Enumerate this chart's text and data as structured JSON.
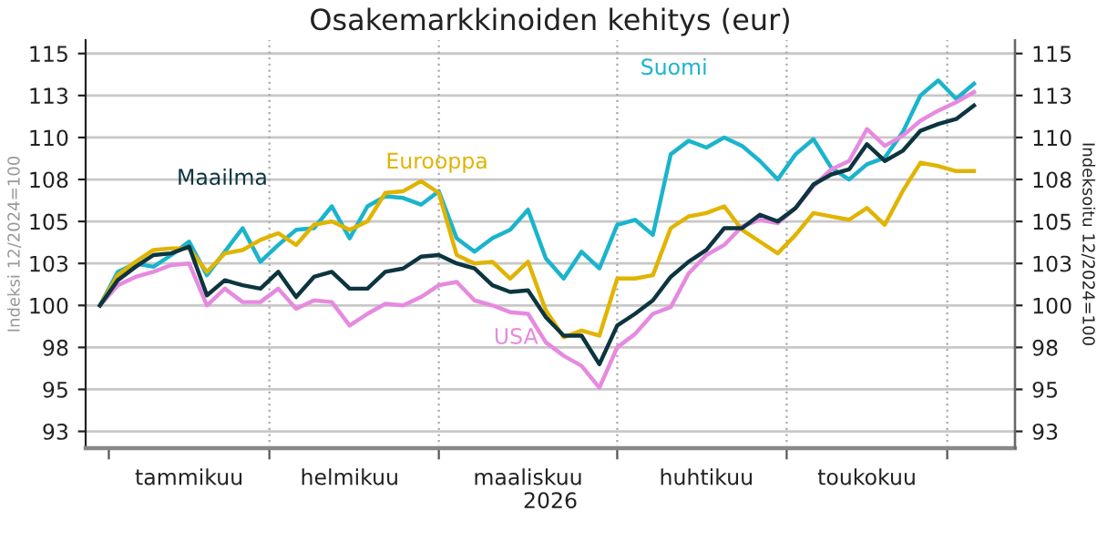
{
  "chart_data": {
    "type": "line",
    "title": "Osakemarkkinoiden kehitys (eur)",
    "xlabel": "2026",
    "ylabel": "Indeksi 12/2024=100",
    "y2label": "Indeksoitu 12/2024=100",
    "categories": [
      null,
      null,
      null,
      null,
      null,
      "tammikuu",
      null,
      null,
      null,
      null,
      null,
      null,
      null,
      null,
      "helmikuu",
      null,
      null,
      null,
      null,
      null,
      null,
      null,
      null,
      null,
      "maaliskuu",
      null,
      null,
      null,
      null,
      null,
      null,
      null,
      null,
      null,
      "huhtikuu",
      null,
      null,
      null,
      null,
      null,
      null,
      null,
      null,
      "toukokuu",
      null,
      null,
      null,
      null,
      null,
      null
    ],
    "series": [
      {
        "name": "Suomi",
        "color": "#1ab4cc",
        "values": [
          100,
          102.0,
          102.5,
          102.3,
          103.0,
          103.8,
          101.8,
          103.2,
          104.6,
          102.6,
          103.6,
          104.5,
          104.6,
          105.9,
          104.0,
          105.9,
          106.5,
          106.4,
          106.0,
          106.8,
          104.0,
          103.2,
          104.0,
          104.5,
          105.7,
          102.8,
          101.6,
          103.2,
          102.2,
          104.8,
          105.1,
          104.2,
          109.0,
          109.8,
          109.4,
          110.0,
          109.5,
          108.6,
          107.5,
          109.0,
          109.9,
          108.2,
          107.5,
          108.4,
          108.8,
          110.3,
          112.5,
          113.4,
          112.3,
          113.2
        ]
      },
      {
        "name": "Eurooppa",
        "color": "#e0b400",
        "values": [
          100,
          101.8,
          102.6,
          103.3,
          103.4,
          103.4,
          102.0,
          103.1,
          103.3,
          103.9,
          104.3,
          103.6,
          104.8,
          105.0,
          104.5,
          105.0,
          106.7,
          106.8,
          107.4,
          106.7,
          103.0,
          102.5,
          102.6,
          101.6,
          102.6,
          99.7,
          98.1,
          98.5,
          98.2,
          101.6,
          101.6,
          101.8,
          104.6,
          105.3,
          105.5,
          105.9,
          104.5,
          103.8,
          103.1,
          104.2,
          105.5,
          105.3,
          105.1,
          105.8,
          104.8,
          106.8,
          108.5,
          108.3,
          108.0,
          108.0
        ]
      },
      {
        "name": "USA",
        "color": "#e68ae0",
        "values": [
          100,
          101.2,
          101.7,
          102.0,
          102.4,
          102.5,
          100.0,
          101.0,
          100.2,
          100.2,
          101.0,
          99.8,
          100.3,
          100.2,
          98.8,
          99.5,
          100.1,
          100.0,
          100.5,
          101.2,
          101.4,
          100.3,
          100.0,
          99.6,
          99.5,
          97.8,
          97.0,
          96.4,
          95.1,
          97.5,
          98.3,
          99.5,
          99.9,
          101.9,
          103.0,
          103.6,
          104.7,
          105.1,
          104.9,
          105.8,
          107.1,
          108.1,
          108.6,
          110.5,
          109.5,
          110.1,
          111.0,
          111.6,
          112.1,
          112.7
        ]
      },
      {
        "name": "Maailma",
        "color": "#0d3540",
        "values": [
          100,
          101.5,
          102.3,
          103.0,
          103.1,
          103.5,
          100.6,
          101.5,
          101.2,
          101.0,
          102.0,
          100.5,
          101.7,
          102.0,
          101.0,
          101.0,
          102.0,
          102.2,
          102.9,
          103.0,
          102.5,
          102.2,
          101.2,
          100.8,
          100.9,
          99.3,
          98.2,
          98.2,
          96.5,
          98.8,
          99.5,
          100.3,
          101.7,
          102.6,
          103.3,
          104.6,
          104.6,
          105.4,
          105.0,
          105.8,
          107.2,
          107.8,
          108.1,
          109.6,
          108.6,
          109.2,
          110.4,
          110.8,
          111.1,
          111.9
        ]
      }
    ],
    "ylim": [
      91.5,
      115.8
    ],
    "yticks": [
      {
        "value": 92.5,
        "label": "93"
      },
      {
        "value": 95,
        "label": "95"
      },
      {
        "value": 97.5,
        "label": "98"
      },
      {
        "value": 100,
        "label": "100"
      },
      {
        "value": 102.5,
        "label": "103"
      },
      {
        "value": 105,
        "label": "105"
      },
      {
        "value": 107.5,
        "label": "108"
      },
      {
        "value": 110,
        "label": "110"
      },
      {
        "value": 112.5,
        "label": "113"
      },
      {
        "value": 115,
        "label": "115"
      }
    ],
    "y2lim": [
      91.5,
      115.8
    ],
    "y2ticks": [
      {
        "value": 92.5,
        "label": "93"
      },
      {
        "value": 95,
        "label": "95"
      },
      {
        "value": 97.5,
        "label": "98"
      },
      {
        "value": 100,
        "label": "100"
      },
      {
        "value": 102.5,
        "label": "103"
      },
      {
        "value": 105,
        "label": "105"
      },
      {
        "value": 107.5,
        "label": "108"
      },
      {
        "value": 110,
        "label": "110"
      },
      {
        "value": 112.5,
        "label": "113"
      },
      {
        "value": 115,
        "label": "115"
      }
    ],
    "grid": true,
    "legend": false
  }
}
